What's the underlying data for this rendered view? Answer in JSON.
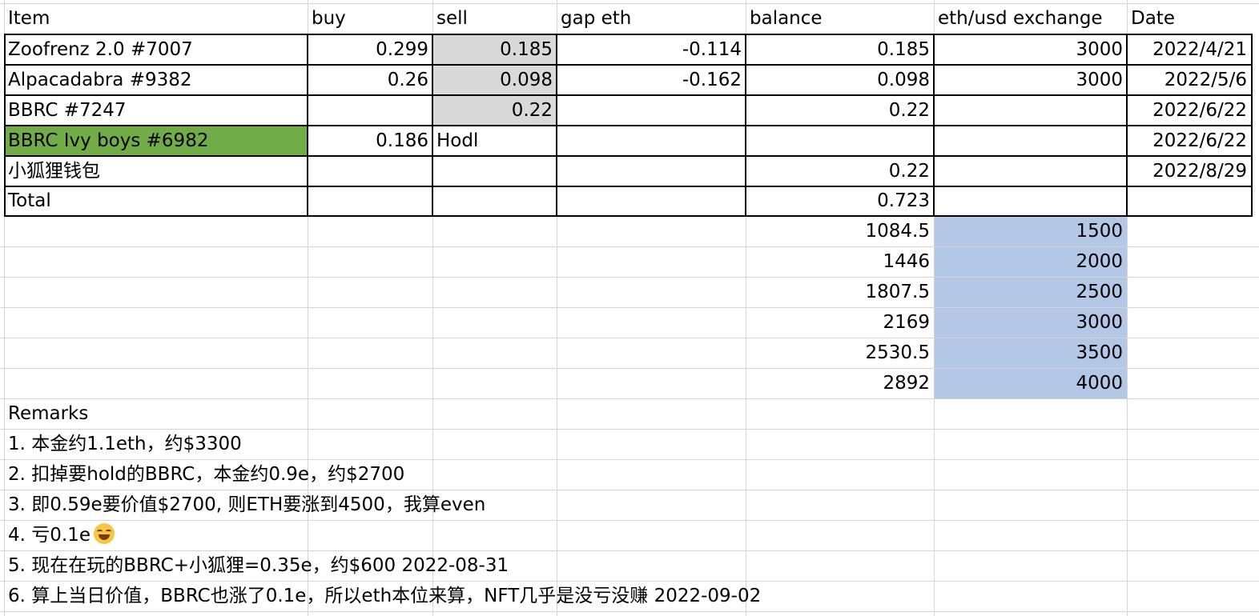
{
  "colors": {
    "green_fill": "#70ad47",
    "gray_fill": "#d9d9d9",
    "blue_fill": "#b4c7e7"
  },
  "headers": [
    "Item",
    "buy",
    "sell",
    "gap eth",
    "balance",
    "eth/usd exchange",
    "Date"
  ],
  "rows": [
    {
      "item": "Zoofrenz 2.0 #7007",
      "buy": "0.299",
      "sell": "0.185",
      "gap": "-0.114",
      "balance": "0.185",
      "exchange": "3000",
      "date": "2022/4/21"
    },
    {
      "item": "Alpacadabra #9382",
      "buy": "0.26",
      "sell": "0.098",
      "gap": "-0.162",
      "balance": "0.098",
      "exchange": "3000",
      "date": "2022/5/6"
    },
    {
      "item": "BBRC #7247",
      "buy": "",
      "sell": "0.22",
      "gap": "",
      "balance": "0.22",
      "exchange": "",
      "date": "2022/6/22"
    },
    {
      "item": "BBRC Ivy boys #6982",
      "buy": "0.186",
      "sell": "Hodl",
      "gap": "",
      "balance": "",
      "exchange": "",
      "date": "2022/6/22"
    },
    {
      "item": "小狐狸钱包",
      "buy": "",
      "sell": "",
      "gap": "",
      "balance": "0.22",
      "exchange": "",
      "date": "2022/8/29"
    },
    {
      "item": "Total",
      "buy": "",
      "sell": "",
      "gap": "",
      "balance": "0.723",
      "exchange": "",
      "date": ""
    }
  ],
  "scenarios": [
    {
      "value": "1084.5",
      "rate": "1500"
    },
    {
      "value": "1446",
      "rate": "2000"
    },
    {
      "value": "1807.5",
      "rate": "2500"
    },
    {
      "value": "2169",
      "rate": "3000"
    },
    {
      "value": "2530.5",
      "rate": "3500"
    },
    {
      "value": "2892",
      "rate": "4000"
    }
  ],
  "remarks_title": "Remarks",
  "remarks": [
    "1. 本金约1.1eth，约$3300",
    "2. 扣掉要hold的BBRC，本金约0.9e，约$2700",
    "3. 即0.59e要价值$2700, 则ETH要涨到4500，我算even",
    "4. 亏0.1e",
    "5. 现在在玩的BBRC+小狐狸=0.35e，约$600 2022-08-31",
    "6. 算上当日价值，BBRC也涨了0.1e，所以eth本位来算，NFT几乎是没亏没赚 2022-09-02"
  ],
  "remark4_icon": "laughing-tears-emoji-icon"
}
